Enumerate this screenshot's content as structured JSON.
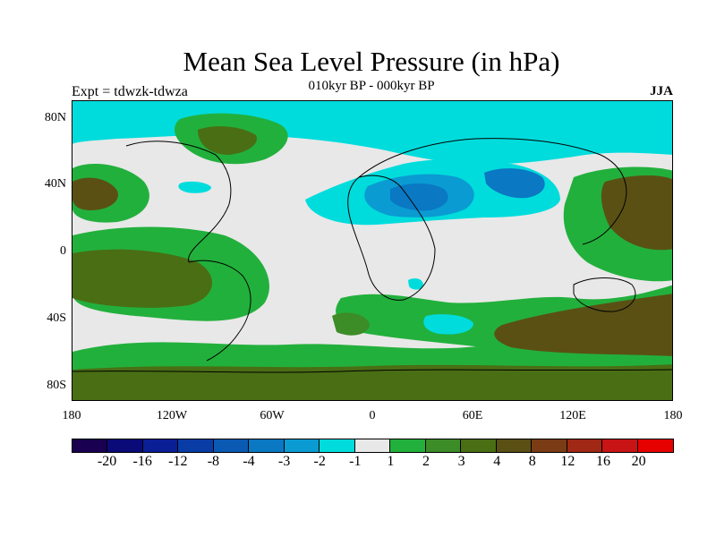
{
  "title": "Mean Sea Level Pressure (in hPa)",
  "subtitle": "010kyr BP - 000kyr BP",
  "left_label": "Expt = tdwzk-tdwza",
  "right_label": "JJA",
  "lat_labels": [
    "80N",
    "40N",
    "0",
    "40S",
    "80S"
  ],
  "lon_labels": [
    "180",
    "120W",
    "60W",
    "0",
    "60E",
    "120E",
    "180"
  ],
  "colorbar": {
    "labels": [
      "-20",
      "-16",
      "-12",
      "-8",
      "-4",
      "-3",
      "-2",
      "-1",
      "1",
      "2",
      "3",
      "4",
      "8",
      "12",
      "16",
      "20"
    ],
    "colors": [
      "#1a0050",
      "#0a0a78",
      "#0a1e96",
      "#0a3ca5",
      "#0a5ab4",
      "#0a78c3",
      "#0a9bd2",
      "#00dcdc",
      "#e8e8e8",
      "#22b03c",
      "#3c8c28",
      "#4a6e14",
      "#5a5014",
      "#7a3c14",
      "#a02814",
      "#c81414",
      "#e60000"
    ]
  }
}
